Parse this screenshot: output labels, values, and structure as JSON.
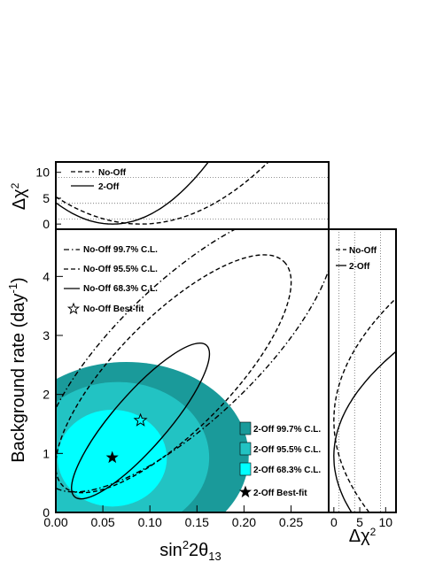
{
  "chart_data": [
    {
      "panel": "main",
      "type": "contour",
      "xlabel_main": "sin",
      "xlabel_sup": "2",
      "xlabel_rest": "2θ",
      "xlabel_sub": "13",
      "ylabel_main": "Background rate (day",
      "ylabel_sup": "-1",
      "ylabel_end": ")",
      "xlim": [
        0,
        0.29
      ],
      "ylim": [
        0,
        4.8
      ],
      "xticks": [
        "0.00",
        "0.05",
        "0.10",
        "0.15",
        "0.20",
        "0.25"
      ],
      "xtick_values": [
        0,
        0.05,
        0.1,
        0.15,
        0.2,
        0.25
      ],
      "yticks": [
        "0",
        "1",
        "2",
        "3",
        "4"
      ],
      "ytick_values": [
        0,
        1,
        2,
        3,
        4
      ],
      "legend_noff": [
        {
          "label": "No-Off 99.7% C.L.",
          "style": "dashdot"
        },
        {
          "label": "No-Off 95.5% C.L.",
          "style": "dashed"
        },
        {
          "label": "No-Off 68.3% C.L.",
          "style": "solid"
        },
        {
          "label": "No-Off Best-fit",
          "style": "open-star"
        }
      ],
      "legend_2off": [
        {
          "label": "2-Off 99.7% C.L.",
          "color": "#1a9a9a"
        },
        {
          "label": "2-Off 95.5% C.L.",
          "color": "#22c3c3"
        },
        {
          "label": "2-Off 68.3% C.L.",
          "color": "#00ffff"
        },
        {
          "label": "2-Off Best-fit",
          "style": "filled-star"
        }
      ],
      "series": [
        {
          "kind": "no-off",
          "cl": "99.7%",
          "center": [
            0.14,
            2.75
          ],
          "corners": [
            [
              -0.035,
              0.0
            ],
            [
              0.26,
              4.5
            ]
          ]
        },
        {
          "kind": "no-off",
          "cl": "95.5%",
          "center": [
            0.125,
            2.35
          ],
          "corners": [
            [
              -0.01,
              0.3
            ],
            [
              0.225,
              4.1
            ]
          ]
        },
        {
          "kind": "no-off",
          "cl": "68.3%",
          "center": [
            0.09,
            1.55
          ],
          "corners": [
            [
              0.025,
              0.28
            ],
            [
              0.165,
              2.85
            ]
          ]
        },
        {
          "kind": "2-off",
          "cl": "99.7%",
          "center": [
            0.075,
            0.95
          ],
          "radii": [
            0.13,
            1.6
          ]
        },
        {
          "kind": "2-off",
          "cl": "95.5%",
          "center": [
            0.066,
            0.93
          ],
          "radii": [
            0.097,
            1.28
          ]
        },
        {
          "kind": "2-off",
          "cl": "68.3%",
          "center": [
            0.06,
            0.92
          ],
          "radii": [
            0.058,
            0.82
          ]
        }
      ],
      "best_fit_no_off": [
        0.09,
        1.56
      ],
      "best_fit_2_off": [
        0.06,
        0.93
      ]
    },
    {
      "panel": "top",
      "type": "line",
      "ylabel_main": "Δχ",
      "ylabel_sup": "2",
      "xlim": [
        0,
        0.29
      ],
      "ylim": [
        -1,
        12
      ],
      "yticks": [
        "0",
        "5",
        "10"
      ],
      "ytick_values": [
        0,
        5,
        10
      ],
      "reference_lines": [
        1,
        4,
        9
      ],
      "series": [
        {
          "name": "No-Off",
          "style": "dashed",
          "min_x": 0.09,
          "curvature": 650
        },
        {
          "name": "2-Off",
          "style": "solid",
          "min_x": 0.06,
          "curvature": 1150
        }
      ]
    },
    {
      "panel": "right",
      "type": "line",
      "xlabel_main": "Δχ",
      "xlabel_sup": "2",
      "xlim": [
        -1,
        12
      ],
      "xticks": [
        "0",
        "5",
        "10"
      ],
      "xtick_values": [
        0,
        5,
        10
      ],
      "reference_lines": [
        1,
        4,
        9
      ],
      "series": [
        {
          "name": "No-Off",
          "style": "dashed",
          "min_y": 1.56,
          "curvature": 2.8
        },
        {
          "name": "2-Off",
          "style": "solid",
          "min_y": 0.95,
          "curvature": 3.8
        }
      ]
    }
  ],
  "colors": {
    "cl997": "#1a9a9a",
    "cl955": "#22c3c3",
    "cl683": "#00ffff",
    "line": "#000000"
  }
}
